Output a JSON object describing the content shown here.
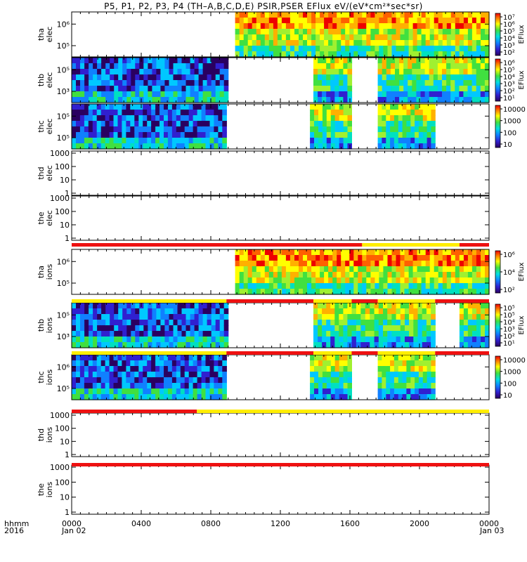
{
  "title": "P5, P1, P2, P3, P4 (TH–A,B,C,D,E) PSIR,PSER EFlux eV/(eV*cm²*sec*sr)",
  "footer": {
    "row1_label": "hhmm",
    "row2_label": "2016",
    "date_start": "Jan 02",
    "date_end": "Jan 03"
  },
  "chart_data": {
    "type": "heatmap",
    "x_ticks": [
      "0000",
      "0400",
      "0800",
      "1200",
      "1600",
      "2000",
      "0000"
    ],
    "x_range_hours": [
      0,
      24
    ],
    "panels": [
      {
        "id": "tha_elec",
        "ylabel": [
          "tha",
          "elec"
        ],
        "yticks": [
          "10⁶",
          "10⁵"
        ],
        "colorbar": true,
        "cb_ticks": [
          "10⁷",
          "10⁶",
          "10⁵",
          "10⁴",
          "10³",
          "10²"
        ],
        "cb_label": "EFlux",
        "data_intervals": [
          [
            9.4,
            24
          ]
        ],
        "log_scale": true
      },
      {
        "id": "thb_elec",
        "ylabel": [
          "thb",
          "elec"
        ],
        "yticks": [
          "10⁵",
          "10³"
        ],
        "colorbar": true,
        "cb_ticks": [
          "10⁶",
          "10⁵",
          "10⁴",
          "10³",
          "10²",
          "10¹"
        ],
        "cb_label": "EFlux",
        "data_intervals": [
          [
            0,
            9.0
          ],
          [
            13.9,
            16.1
          ],
          [
            17.6,
            24
          ]
        ],
        "log_scale": true
      },
      {
        "id": "thc_elec",
        "ylabel": [
          "thc",
          "elec"
        ],
        "yticks": [
          "10⁵",
          "10⁵"
        ],
        "colorbar": true,
        "cb_ticks": [
          "10000",
          "1000",
          "100",
          "10"
        ],
        "cb_label": "",
        "data_intervals": [
          [
            0,
            8.9
          ],
          [
            13.7,
            16.1
          ],
          [
            17.6,
            20.9
          ]
        ],
        "log_scale": true
      },
      {
        "id": "thd_elec",
        "ylabel": [
          "thd",
          "elec"
        ],
        "yticks": [
          "1000",
          "100",
          "10",
          "1"
        ],
        "colorbar": false,
        "data_intervals": [],
        "log_scale": true
      },
      {
        "id": "the_elec",
        "ylabel": [
          "the",
          "elec"
        ],
        "yticks": [
          "1000",
          "100",
          "10",
          "1"
        ],
        "colorbar": false,
        "data_intervals": [],
        "log_scale": true
      },
      {
        "id": "tha_ions",
        "ylabel": [
          "tha",
          "ions"
        ],
        "yticks": [
          "10⁶",
          "10⁵"
        ],
        "colorbar": true,
        "cb_ticks": [
          "10⁶",
          "10⁴",
          "10²"
        ],
        "cb_label": "EFlux",
        "data_intervals": [
          [
            9.4,
            24
          ]
        ],
        "log_scale": true
      },
      {
        "id": "thb_ions",
        "ylabel": [
          "thb",
          "ions"
        ],
        "yticks": [
          "10⁵",
          "10³"
        ],
        "colorbar": true,
        "cb_ticks": [
          "10⁵",
          "10⁵",
          "10⁴",
          "10³",
          "10²",
          "10¹"
        ],
        "cb_label": "EFlux",
        "data_intervals": [
          [
            0,
            9.0
          ],
          [
            13.9,
            16.1
          ],
          [
            16.1,
            17.4
          ],
          [
            17.4,
            20.9
          ],
          [
            22.3,
            24
          ]
        ],
        "log_scale": true
      },
      {
        "id": "thc_ions",
        "ylabel": [
          "thc",
          "ions"
        ],
        "yticks": [
          "10⁶",
          "10⁵"
        ],
        "colorbar": true,
        "cb_ticks": [
          "10000",
          "1000",
          "100",
          "10"
        ],
        "cb_label": "",
        "data_intervals": [
          [
            0,
            8.9
          ],
          [
            13.7,
            16.1
          ],
          [
            17.6,
            20.9
          ]
        ],
        "log_scale": true
      },
      {
        "id": "thd_ions",
        "ylabel": [
          "thd",
          "ions"
        ],
        "yticks": [
          "1000",
          "100",
          "10",
          "1"
        ],
        "colorbar": false,
        "data_intervals": [],
        "log_scale": true
      },
      {
        "id": "the_ions",
        "ylabel": [
          "the",
          "ions"
        ],
        "yticks": [
          "1000",
          "100",
          "10",
          "1"
        ],
        "colorbar": false,
        "data_intervals": [],
        "log_scale": true
      }
    ],
    "mode_bars": [
      {
        "after_panel": 4,
        "segments": [
          {
            "from": 0,
            "to": 16.7,
            "color": "red"
          },
          {
            "from": 16.7,
            "to": 22.3,
            "color": "yellow"
          },
          {
            "from": 22.3,
            "to": 24,
            "color": "red"
          }
        ]
      },
      {
        "after_panel": 5,
        "segments": [
          {
            "from": 0,
            "to": 8.9,
            "color": "yellow"
          },
          {
            "from": 8.9,
            "to": 13.9,
            "color": "red"
          },
          {
            "from": 13.9,
            "to": 16.1,
            "color": "yellow"
          },
          {
            "from": 16.1,
            "to": 17.6,
            "color": "red"
          },
          {
            "from": 17.6,
            "to": 20.9,
            "color": "yellow"
          },
          {
            "from": 20.9,
            "to": 24,
            "color": "red"
          }
        ]
      },
      {
        "after_panel": 6,
        "segments": [
          {
            "from": 0,
            "to": 8.9,
            "color": "yellow"
          },
          {
            "from": 8.9,
            "to": 13.9,
            "color": "red"
          },
          {
            "from": 13.9,
            "to": 16.1,
            "color": "yellow"
          },
          {
            "from": 16.1,
            "to": 17.6,
            "color": "red"
          },
          {
            "from": 17.6,
            "to": 20.9,
            "color": "yellow"
          },
          {
            "from": 20.9,
            "to": 24,
            "color": "red"
          }
        ]
      },
      {
        "after_panel": 7,
        "segments": [
          {
            "from": 0,
            "to": 7.2,
            "color": "red"
          },
          {
            "from": 7.2,
            "to": 24,
            "color": "yellow"
          }
        ]
      },
      {
        "after_panel": 8,
        "segments": [
          {
            "from": 0,
            "to": 24,
            "color": "red"
          }
        ]
      }
    ],
    "colors": {
      "red": "#ee1111",
      "yellow": "#ffee00"
    }
  }
}
